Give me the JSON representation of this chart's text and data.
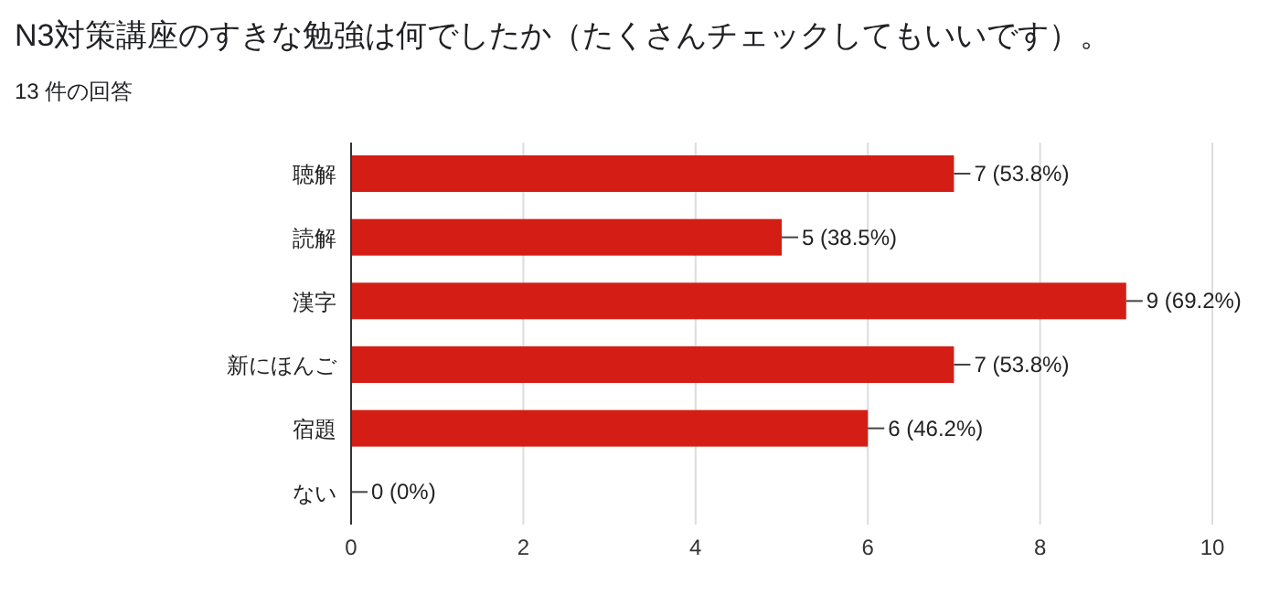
{
  "chart_data": {
    "type": "bar",
    "orientation": "horizontal",
    "title": "N3対策講座のすきな勉強は何でしたか（たくさんチェックしてもいいです）。",
    "subtitle": "13 件の回答",
    "categories": [
      "聴解",
      "読解",
      "漢字",
      "新にほんご",
      "宿題",
      "ない"
    ],
    "values": [
      7,
      5,
      9,
      7,
      6,
      0
    ],
    "value_labels": [
      "7 (53.8%)",
      "5 (38.5%)",
      "9 (69.2%)",
      "7 (53.8%)",
      "6 (46.2%)",
      "0 (0%)"
    ],
    "color": "#d41e15",
    "xlim": [
      0,
      10
    ],
    "xticks": [
      0,
      2,
      4,
      6,
      8,
      10
    ],
    "grid": "x",
    "legend": false
  }
}
